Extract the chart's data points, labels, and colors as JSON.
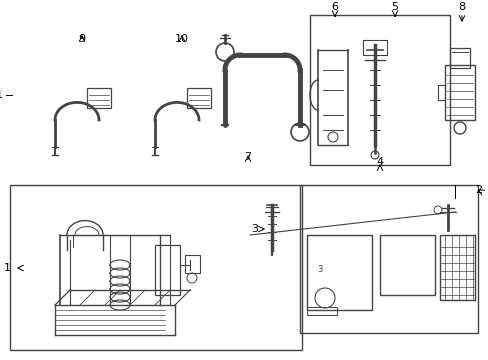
{
  "background_color": "#ffffff",
  "line_color": "#444444",
  "text_color": "#000000",
  "figsize": [
    4.89,
    3.6
  ],
  "dpi": 100
}
